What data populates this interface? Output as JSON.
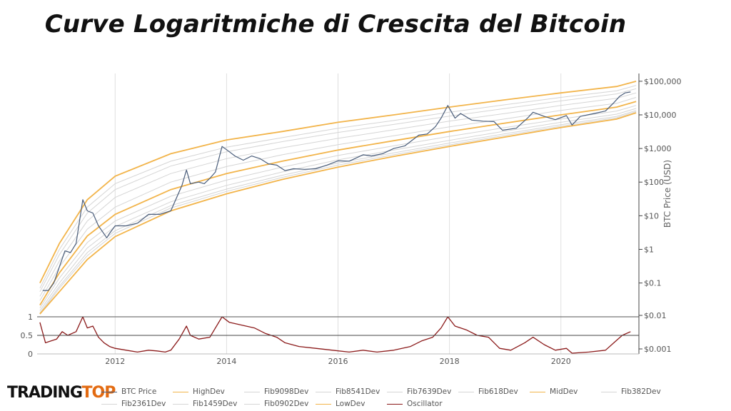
{
  "title": "Curve Logaritmiche di Crescita del Bitcoin",
  "logo": {
    "main": "TRADING",
    "accent": "TOP"
  },
  "legend": [
    {
      "label": "BTC Price",
      "color": "#4a5d7a"
    },
    {
      "label": "HighDev",
      "color": "#f2b44a"
    },
    {
      "label": "Fib9098Dev",
      "color": "#d5d5d5"
    },
    {
      "label": "Fib8541Dev",
      "color": "#d5d5d5"
    },
    {
      "label": "Fib7639Dev",
      "color": "#d5d5d5"
    },
    {
      "label": "Fib618Dev",
      "color": "#d5d5d5"
    },
    {
      "label": "MidDev",
      "color": "#f2b44a"
    },
    {
      "label": "Fib382Dev",
      "color": "#d5d5d5"
    },
    {
      "label": "Fib2361Dev",
      "color": "#d5d5d5"
    },
    {
      "label": "Fib1459Dev",
      "color": "#d5d5d5"
    },
    {
      "label": "Fib0902Dev",
      "color": "#d5d5d5"
    },
    {
      "label": "LowDev",
      "color": "#f2b44a"
    },
    {
      "label": "Oscillator",
      "color": "#8b1a1a"
    }
  ],
  "chart_data": {
    "type": "line",
    "scale": "log",
    "xlim": [
      2010.6,
      2021.4
    ],
    "x_ticks": [
      "2012",
      "2014",
      "2016",
      "2018",
      "2020"
    ],
    "x_tick_values": [
      2012,
      2014,
      2016,
      2018,
      2020
    ],
    "price_axis": {
      "ylabel": "BTC Price (USD)",
      "ylim": [
        0.012,
        170000
      ],
      "ticks": [
        "$100,000",
        "$10,000",
        "$1,000",
        "$100",
        "$10",
        "$1",
        "$0.1",
        "$0.01",
        "$0.001"
      ],
      "tick_values": [
        100000,
        10000,
        1000,
        100,
        10,
        1,
        0.1,
        0.01,
        0.001
      ]
    },
    "oscillator_axis": {
      "ylim": [
        0,
        1
      ],
      "ticks": [
        "1",
        "0.5",
        "0"
      ],
      "tick_values": [
        1,
        0.5,
        0
      ]
    },
    "bands": [
      {
        "name": "HighDev",
        "color": "#f2b44a",
        "points": [
          [
            2010.65,
            0.1
          ],
          [
            2011.0,
            1.5
          ],
          [
            2011.5,
            30
          ],
          [
            2012,
            150
          ],
          [
            2013,
            700
          ],
          [
            2014,
            1800
          ],
          [
            2015,
            3200
          ],
          [
            2016,
            6000
          ],
          [
            2017,
            10000
          ],
          [
            2018,
            17000
          ],
          [
            2019,
            28000
          ],
          [
            2020,
            45000
          ],
          [
            2021,
            70000
          ],
          [
            2021.35,
            100000
          ]
        ]
      },
      {
        "name": "Fib9098Dev",
        "color": "#d5d5d5",
        "points": [
          [
            2010.65,
            0.07
          ],
          [
            2011.0,
            1.0
          ],
          [
            2011.5,
            18
          ],
          [
            2012,
            90
          ],
          [
            2013,
            420
          ],
          [
            2014,
            1100
          ],
          [
            2015,
            2100
          ],
          [
            2016,
            4000
          ],
          [
            2017,
            6800
          ],
          [
            2018,
            12000
          ],
          [
            2019,
            20000
          ],
          [
            2020,
            33000
          ],
          [
            2021,
            52000
          ],
          [
            2021.35,
            75000
          ]
        ]
      },
      {
        "name": "Fib8541Dev",
        "color": "#d5d5d5",
        "points": [
          [
            2010.65,
            0.055
          ],
          [
            2011.0,
            0.7
          ],
          [
            2011.5,
            12
          ],
          [
            2012,
            60
          ],
          [
            2013,
            300
          ],
          [
            2014,
            800
          ],
          [
            2015,
            1600
          ],
          [
            2016,
            3000
          ],
          [
            2017,
            5200
          ],
          [
            2018,
            9200
          ],
          [
            2019,
            15500
          ],
          [
            2020,
            26000
          ],
          [
            2021,
            42000
          ],
          [
            2021.35,
            60000
          ]
        ]
      },
      {
        "name": "Fib7639Dev",
        "color": "#d5d5d5",
        "points": [
          [
            2010.65,
            0.04
          ],
          [
            2011.0,
            0.45
          ],
          [
            2011.5,
            7
          ],
          [
            2012,
            35
          ],
          [
            2013,
            180
          ],
          [
            2014,
            500
          ],
          [
            2015,
            1050
          ],
          [
            2016,
            2000
          ],
          [
            2017,
            3600
          ],
          [
            2018,
            6500
          ],
          [
            2019,
            11000
          ],
          [
            2020,
            19000
          ],
          [
            2021,
            31000
          ],
          [
            2021.35,
            45000
          ]
        ]
      },
      {
        "name": "Fib618Dev",
        "color": "#d5d5d5",
        "points": [
          [
            2010.65,
            0.03
          ],
          [
            2011.0,
            0.3
          ],
          [
            2011.5,
            4
          ],
          [
            2012,
            18
          ],
          [
            2013,
            100
          ],
          [
            2014,
            290
          ],
          [
            2015,
            650
          ],
          [
            2016,
            1300
          ],
          [
            2017,
            2400
          ],
          [
            2018,
            4400
          ],
          [
            2019,
            7600
          ],
          [
            2020,
            13500
          ],
          [
            2021,
            22000
          ],
          [
            2021.35,
            33000
          ]
        ]
      },
      {
        "name": "MidDev",
        "color": "#f2b44a",
        "points": [
          [
            2010.65,
            0.022
          ],
          [
            2011.0,
            0.2
          ],
          [
            2011.5,
            2.5
          ],
          [
            2012,
            11
          ],
          [
            2013,
            60
          ],
          [
            2014,
            180
          ],
          [
            2015,
            420
          ],
          [
            2016,
            900
          ],
          [
            2017,
            1700
          ],
          [
            2018,
            3200
          ],
          [
            2019,
            5700
          ],
          [
            2020,
            10000
          ],
          [
            2021,
            17000
          ],
          [
            2021.35,
            25000
          ]
        ]
      },
      {
        "name": "Fib382Dev",
        "color": "#d5d5d5",
        "points": [
          [
            2010.65,
            0.018
          ],
          [
            2011.0,
            0.14
          ],
          [
            2011.5,
            1.6
          ],
          [
            2012,
            7
          ],
          [
            2013,
            38
          ],
          [
            2014,
            115
          ],
          [
            2015,
            280
          ],
          [
            2016,
            620
          ],
          [
            2017,
            1200
          ],
          [
            2018,
            2300
          ],
          [
            2019,
            4200
          ],
          [
            2020,
            7500
          ],
          [
            2021,
            13000
          ],
          [
            2021.35,
            19000
          ]
        ]
      },
      {
        "name": "Fib2361Dev",
        "color": "#d5d5d5",
        "points": [
          [
            2010.65,
            0.015
          ],
          [
            2011.0,
            0.1
          ],
          [
            2011.5,
            1.1
          ],
          [
            2012,
            4.8
          ],
          [
            2013,
            26
          ],
          [
            2014,
            80
          ],
          [
            2015,
            200
          ],
          [
            2016,
            460
          ],
          [
            2017,
            900
          ],
          [
            2018,
            1750
          ],
          [
            2019,
            3300
          ],
          [
            2020,
            6000
          ],
          [
            2021,
            10500
          ],
          [
            2021.35,
            15500
          ]
        ]
      },
      {
        "name": "Fib1459Dev",
        "color": "#d5d5d5",
        "points": [
          [
            2010.65,
            0.013
          ],
          [
            2011.0,
            0.08
          ],
          [
            2011.5,
            0.8
          ],
          [
            2012,
            3.6
          ],
          [
            2013,
            20
          ],
          [
            2014,
            62
          ],
          [
            2015,
            160
          ],
          [
            2016,
            370
          ],
          [
            2017,
            740
          ],
          [
            2018,
            1450
          ],
          [
            2019,
            2750
          ],
          [
            2020,
            5100
          ],
          [
            2021,
            9000
          ],
          [
            2021.35,
            13500
          ]
        ]
      },
      {
        "name": "Fib0902Dev",
        "color": "#d5d5d5",
        "points": [
          [
            2010.65,
            0.012
          ],
          [
            2011.0,
            0.07
          ],
          [
            2011.5,
            0.65
          ],
          [
            2012,
            3.0
          ],
          [
            2013,
            17
          ],
          [
            2014,
            53
          ],
          [
            2015,
            138
          ],
          [
            2016,
            320
          ],
          [
            2017,
            650
          ],
          [
            2018,
            1280
          ],
          [
            2019,
            2450
          ],
          [
            2020,
            4600
          ],
          [
            2021,
            8200
          ],
          [
            2021.35,
            12500
          ]
        ]
      },
      {
        "name": "LowDev",
        "color": "#f2b44a",
        "points": [
          [
            2010.65,
            0.012
          ],
          [
            2011.0,
            0.055
          ],
          [
            2011.5,
            0.5
          ],
          [
            2012,
            2.4
          ],
          [
            2013,
            14
          ],
          [
            2014,
            45
          ],
          [
            2015,
            120
          ],
          [
            2016,
            280
          ],
          [
            2017,
            580
          ],
          [
            2018,
            1150
          ],
          [
            2019,
            2200
          ],
          [
            2020,
            4200
          ],
          [
            2021,
            7500
          ],
          [
            2021.35,
            11500
          ]
        ]
      }
    ],
    "price_series": {
      "name": "BTC Price",
      "color": "#4a5d7a",
      "points": [
        [
          2010.7,
          0.06
        ],
        [
          2010.8,
          0.06
        ],
        [
          2010.9,
          0.1
        ],
        [
          2011.0,
          0.3
        ],
        [
          2011.1,
          0.9
        ],
        [
          2011.2,
          0.8
        ],
        [
          2011.3,
          1.5
        ],
        [
          2011.42,
          30
        ],
        [
          2011.5,
          14
        ],
        [
          2011.6,
          12
        ],
        [
          2011.7,
          5
        ],
        [
          2011.85,
          2.2
        ],
        [
          2011.9,
          3
        ],
        [
          2012.0,
          5
        ],
        [
          2012.2,
          5
        ],
        [
          2012.4,
          6
        ],
        [
          2012.6,
          11
        ],
        [
          2012.8,
          11
        ],
        [
          2013.0,
          14
        ],
        [
          2013.2,
          80
        ],
        [
          2013.28,
          230
        ],
        [
          2013.35,
          90
        ],
        [
          2013.5,
          100
        ],
        [
          2013.6,
          90
        ],
        [
          2013.7,
          130
        ],
        [
          2013.8,
          200
        ],
        [
          2013.92,
          1150
        ],
        [
          2014.05,
          800
        ],
        [
          2014.15,
          600
        ],
        [
          2014.3,
          450
        ],
        [
          2014.45,
          600
        ],
        [
          2014.6,
          500
        ],
        [
          2014.75,
          350
        ],
        [
          2014.9,
          320
        ],
        [
          2015.05,
          220
        ],
        [
          2015.2,
          250
        ],
        [
          2015.4,
          240
        ],
        [
          2015.6,
          250
        ],
        [
          2015.8,
          320
        ],
        [
          2016.0,
          430
        ],
        [
          2016.2,
          420
        ],
        [
          2016.45,
          650
        ],
        [
          2016.6,
          600
        ],
        [
          2016.8,
          700
        ],
        [
          2017.0,
          1000
        ],
        [
          2017.2,
          1200
        ],
        [
          2017.45,
          2500
        ],
        [
          2017.6,
          2700
        ],
        [
          2017.75,
          4500
        ],
        [
          2017.85,
          8000
        ],
        [
          2017.97,
          19000
        ],
        [
          2018.1,
          8000
        ],
        [
          2018.2,
          11000
        ],
        [
          2018.4,
          7000
        ],
        [
          2018.6,
          6500
        ],
        [
          2018.8,
          6300
        ],
        [
          2018.95,
          3500
        ],
        [
          2019.2,
          4000
        ],
        [
          2019.4,
          8000
        ],
        [
          2019.5,
          12000
        ],
        [
          2019.7,
          9000
        ],
        [
          2019.9,
          7200
        ],
        [
          2020.1,
          9500
        ],
        [
          2020.2,
          5000
        ],
        [
          2020.35,
          9000
        ],
        [
          2020.6,
          11000
        ],
        [
          2020.8,
          13000
        ],
        [
          2020.95,
          23000
        ],
        [
          2021.05,
          35000
        ],
        [
          2021.15,
          45000
        ],
        [
          2021.25,
          48000
        ]
      ]
    },
    "oscillator_series": {
      "name": "Oscillator",
      "color": "#8b1a1a",
      "points": [
        [
          2010.65,
          0.85
        ],
        [
          2010.75,
          0.3
        ],
        [
          2010.85,
          0.35
        ],
        [
          2010.95,
          0.4
        ],
        [
          2011.05,
          0.6
        ],
        [
          2011.15,
          0.5
        ],
        [
          2011.3,
          0.6
        ],
        [
          2011.42,
          1.0
        ],
        [
          2011.5,
          0.7
        ],
        [
          2011.6,
          0.75
        ],
        [
          2011.7,
          0.45
        ],
        [
          2011.8,
          0.3
        ],
        [
          2011.9,
          0.2
        ],
        [
          2012.0,
          0.15
        ],
        [
          2012.2,
          0.1
        ],
        [
          2012.4,
          0.05
        ],
        [
          2012.6,
          0.1
        ],
        [
          2012.75,
          0.08
        ],
        [
          2012.9,
          0.05
        ],
        [
          2013.0,
          0.1
        ],
        [
          2013.15,
          0.4
        ],
        [
          2013.28,
          0.75
        ],
        [
          2013.35,
          0.5
        ],
        [
          2013.5,
          0.4
        ],
        [
          2013.7,
          0.45
        ],
        [
          2013.92,
          1.0
        ],
        [
          2014.05,
          0.85
        ],
        [
          2014.2,
          0.8
        ],
        [
          2014.35,
          0.75
        ],
        [
          2014.5,
          0.7
        ],
        [
          2014.7,
          0.55
        ],
        [
          2014.9,
          0.45
        ],
        [
          2015.05,
          0.3
        ],
        [
          2015.3,
          0.2
        ],
        [
          2015.6,
          0.15
        ],
        [
          2015.9,
          0.1
        ],
        [
          2016.2,
          0.05
        ],
        [
          2016.45,
          0.1
        ],
        [
          2016.7,
          0.05
        ],
        [
          2017.0,
          0.1
        ],
        [
          2017.3,
          0.2
        ],
        [
          2017.5,
          0.35
        ],
        [
          2017.7,
          0.45
        ],
        [
          2017.85,
          0.7
        ],
        [
          2017.97,
          1.0
        ],
        [
          2018.1,
          0.75
        ],
        [
          2018.3,
          0.65
        ],
        [
          2018.5,
          0.5
        ],
        [
          2018.7,
          0.45
        ],
        [
          2018.9,
          0.15
        ],
        [
          2019.1,
          0.1
        ],
        [
          2019.35,
          0.3
        ],
        [
          2019.5,
          0.45
        ],
        [
          2019.7,
          0.25
        ],
        [
          2019.9,
          0.1
        ],
        [
          2020.1,
          0.15
        ],
        [
          2020.2,
          0.02
        ],
        [
          2020.5,
          0.05
        ],
        [
          2020.8,
          0.1
        ],
        [
          2020.95,
          0.3
        ],
        [
          2021.1,
          0.5
        ],
        [
          2021.25,
          0.6
        ]
      ]
    }
  }
}
